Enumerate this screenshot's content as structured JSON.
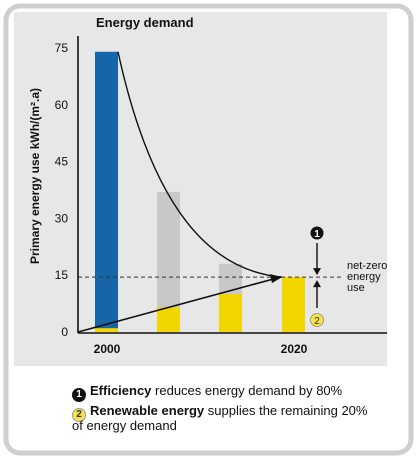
{
  "chart_data": {
    "type": "bar",
    "title": "Energy demand",
    "ylabel": "Primary energy use kWh/(m².a)",
    "ylim": [
      0,
      75
    ],
    "yticks": [
      0,
      15,
      30,
      45,
      60,
      75
    ],
    "xtick_labels": [
      "2000",
      "2020"
    ],
    "bars": [
      {
        "total": 74,
        "renewable": 1,
        "color": "#1565a8"
      },
      {
        "total": 37,
        "renewable": 6.5,
        "color": "#c8c8c8"
      },
      {
        "total": 18,
        "renewable": 10,
        "color": "#c8c8c8"
      },
      {
        "total": 14.5,
        "renewable": 14.5,
        "color": "#f2d600"
      }
    ],
    "netzero_level": 14.5,
    "netzero_label": [
      "net-zero",
      "energy",
      "use"
    ],
    "efficiency_marker": "1",
    "renewable_marker": "2",
    "colors": {
      "efficiency_bar": "#1565a8",
      "intermediate_bar": "#c8c8c8",
      "renewable_bar": "#f2d600",
      "frame": "#cfcfcf"
    }
  },
  "legend": {
    "item1_marker": "1",
    "item1_bold": "Efficiency",
    "item1_text": " reduces energy demand by 80%",
    "item2_marker": "2",
    "item2_bold": "Renewable energy",
    "item2_text": " supplies the remaining 20%",
    "item2_text2": "of energy demand"
  }
}
